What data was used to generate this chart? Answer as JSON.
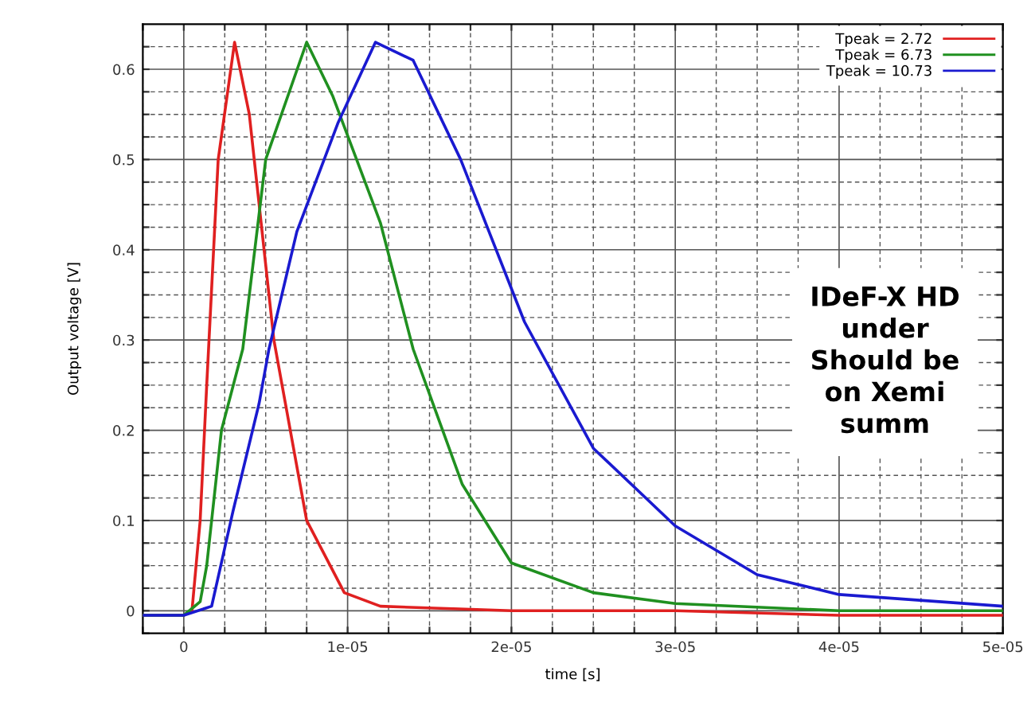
{
  "chart_data": {
    "type": "line",
    "xlabel": "time [s]",
    "ylabel": "Output voltage [V]",
    "xlim": [
      -2.5e-06,
      5e-05
    ],
    "ylim": [
      -0.025,
      0.65
    ],
    "xticks": [
      {
        "value": -2.5e-06,
        "label": null
      },
      {
        "value": 0,
        "label": "0"
      },
      {
        "value": 2.5e-06,
        "label": null
      },
      {
        "value": 5e-06,
        "label": null
      },
      {
        "value": 7.5e-06,
        "label": null
      },
      {
        "value": 1e-05,
        "label": "1e-05"
      },
      {
        "value": 1.25e-05,
        "label": null
      },
      {
        "value": 1.5e-05,
        "label": null
      },
      {
        "value": 1.75e-05,
        "label": null
      },
      {
        "value": 2e-05,
        "label": "2e-05"
      },
      {
        "value": 2.25e-05,
        "label": null
      },
      {
        "value": 2.5e-05,
        "label": null
      },
      {
        "value": 2.75e-05,
        "label": null
      },
      {
        "value": 3e-05,
        "label": "3e-05"
      },
      {
        "value": 3.25e-05,
        "label": null
      },
      {
        "value": 3.5e-05,
        "label": null
      },
      {
        "value": 3.75e-05,
        "label": null
      },
      {
        "value": 4e-05,
        "label": "4e-05"
      },
      {
        "value": 4.25e-05,
        "label": null
      },
      {
        "value": 4.5e-05,
        "label": null
      },
      {
        "value": 4.75e-05,
        "label": null
      },
      {
        "value": 5e-05,
        "label": "5e-05"
      }
    ],
    "yticks": [
      {
        "value": -0.025,
        "label": null
      },
      0,
      {
        "value": 0.025,
        "label": null
      },
      {
        "value": 0.05,
        "label": null
      },
      {
        "value": 0.075,
        "label": null
      },
      0.1,
      {
        "value": 0.125,
        "label": null
      },
      {
        "value": 0.15,
        "label": null
      },
      {
        "value": 0.175,
        "label": null
      },
      0.2,
      {
        "value": 0.225,
        "label": null
      },
      {
        "value": 0.25,
        "label": null
      },
      {
        "value": 0.275,
        "label": null
      },
      0.3,
      {
        "value": 0.325,
        "label": null
      },
      {
        "value": 0.35,
        "label": null
      },
      {
        "value": 0.375,
        "label": null
      },
      0.4,
      {
        "value": 0.425,
        "label": null
      },
      {
        "value": 0.45,
        "label": null
      },
      {
        "value": 0.475,
        "label": null
      },
      0.5,
      {
        "value": 0.525,
        "label": null
      },
      {
        "value": 0.55,
        "label": null
      },
      {
        "value": 0.575,
        "label": null
      },
      0.6,
      {
        "value": 0.625,
        "label": null
      }
    ],
    "grid": true,
    "legend": "top right",
    "line_style": "solid",
    "marker": "none",
    "series": [
      {
        "name": "Tpeak = 2.72",
        "color": "#e02020",
        "x": [
          -2.5e-06,
          0,
          5e-07,
          1e-06,
          1.4e-06,
          2.1e-06,
          3.1e-06,
          4e-06,
          5.5e-06,
          7.5e-06,
          9.8e-06,
          1.2e-05,
          2e-05,
          3e-05,
          4e-05,
          5e-05
        ],
        "values": [
          -0.005,
          -0.005,
          0.0,
          0.1,
          0.25,
          0.5,
          0.63,
          0.55,
          0.3,
          0.1,
          0.02,
          0.005,
          0.0,
          0.0,
          -0.005,
          -0.005
        ]
      },
      {
        "name": "Tpeak = 6.73",
        "color": "#209020",
        "x": [
          -2.5e-06,
          0,
          1e-06,
          1.4e-06,
          2.3e-06,
          3.6e-06,
          5e-06,
          7.5e-06,
          9.1e-06,
          1.2e-05,
          1.4e-05,
          1.7e-05,
          2e-05,
          2.5e-05,
          3e-05,
          4e-05,
          5e-05
        ],
        "values": [
          -0.005,
          -0.005,
          0.01,
          0.05,
          0.2,
          0.29,
          0.5,
          0.63,
          0.57,
          0.43,
          0.29,
          0.14,
          0.053,
          0.02,
          0.008,
          0.0,
          0.0
        ]
      },
      {
        "name": "Tpeak = 10.73",
        "color": "#1a1ad0",
        "x": [
          -2.5e-06,
          0,
          1.7e-06,
          3e-06,
          4.6e-06,
          5.2e-06,
          6.9e-06,
          9.4e-06,
          1.17e-05,
          1.4e-05,
          1.69e-05,
          2.08e-05,
          2.5e-05,
          3e-05,
          3.5e-05,
          4e-05,
          5e-05
        ],
        "values": [
          -0.005,
          -0.005,
          0.005,
          0.11,
          0.23,
          0.29,
          0.42,
          0.54,
          0.63,
          0.61,
          0.5,
          0.32,
          0.18,
          0.094,
          0.04,
          0.018,
          0.005
        ]
      }
    ],
    "annotations": [
      "IDeF-X HD\nunder\nShould be\non Xemi\nsumm"
    ]
  }
}
